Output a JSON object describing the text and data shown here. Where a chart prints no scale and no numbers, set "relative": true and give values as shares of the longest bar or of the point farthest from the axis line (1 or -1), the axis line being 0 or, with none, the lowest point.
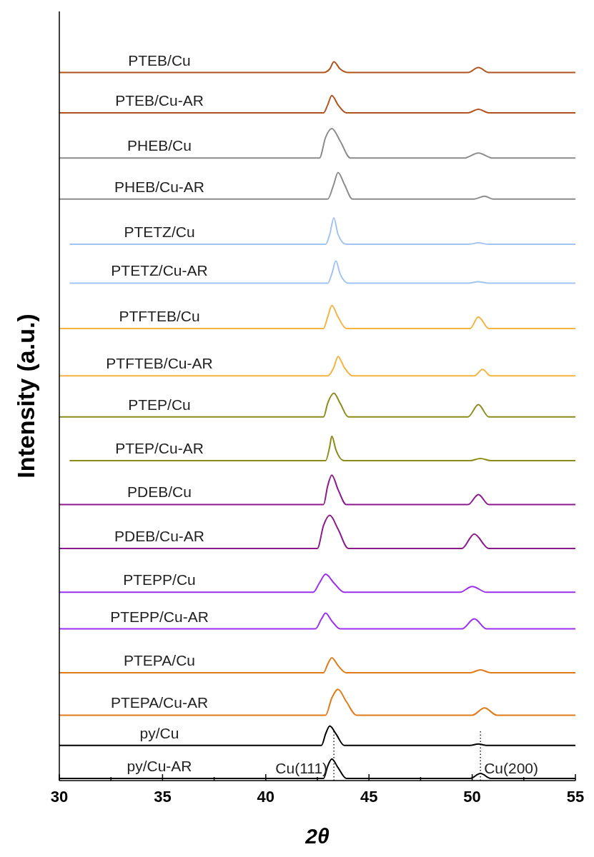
{
  "chart_data": {
    "type": "line",
    "xlabel": "2θ",
    "ylabel": "Intensity (a.u.)",
    "relative": true,
    "xlim": [
      30,
      55
    ],
    "xticks": [
      30,
      {
        "value": 32.5,
        "label": null
      },
      35,
      {
        "value": 37.5,
        "label": null
      },
      40,
      {
        "value": 42.5,
        "label": null
      },
      45,
      {
        "value": 47.5,
        "label": null
      },
      50,
      {
        "value": 52.5,
        "label": null
      },
      55
    ],
    "ref_lines": [
      {
        "axis": "x",
        "value": 43.3,
        "label": "Cu(111)",
        "line_style": "dotted",
        "color": "#000000"
      },
      {
        "axis": "x",
        "value": 50.4,
        "label": "Cu(200)",
        "line_style": "dotted",
        "color": "#000000"
      }
    ],
    "series": [
      {
        "name": "PTEB/Cu",
        "color": "#b0541e",
        "x": [
          30,
          42.8,
          43.1,
          43.3,
          43.6,
          44.0,
          49.8,
          50.3,
          50.8,
          55
        ],
        "values": [
          0.985,
          0.985,
          0.99,
          1.0,
          0.99,
          0.985,
          0.985,
          0.992,
          0.985,
          0.985
        ]
      },
      {
        "name": "PTEB/Cu-AR",
        "color": "#b0541e",
        "x": [
          30,
          42.8,
          43.0,
          43.2,
          43.5,
          43.9,
          49.8,
          50.3,
          50.8,
          55
        ],
        "values": [
          0.929,
          0.929,
          0.94,
          0.953,
          0.94,
          0.929,
          0.929,
          0.934,
          0.929,
          0.929
        ]
      },
      {
        "name": "PHEB/Cu",
        "color": "#8c8c8c",
        "x": [
          30,
          42.6,
          42.9,
          43.2,
          43.6,
          44.1,
          49.6,
          50.3,
          51.0,
          55
        ],
        "values": [
          0.866,
          0.866,
          0.895,
          0.907,
          0.89,
          0.866,
          0.866,
          0.873,
          0.866,
          0.866
        ]
      },
      {
        "name": "PHEB/Cu-AR",
        "color": "#8c8c8c",
        "x": [
          30,
          43.0,
          43.3,
          43.5,
          43.8,
          44.2,
          50.1,
          50.6,
          51.0,
          55
        ],
        "values": [
          0.809,
          0.809,
          0.83,
          0.846,
          0.83,
          0.809,
          0.809,
          0.813,
          0.809,
          0.809
        ]
      },
      {
        "name": "PTETZ/Cu",
        "color": "#a3c4f3",
        "x": [
          30.5,
          42.9,
          43.1,
          43.3,
          43.5,
          43.9,
          49.8,
          50.3,
          50.8,
          55
        ],
        "values": [
          0.746,
          0.746,
          0.76,
          0.783,
          0.76,
          0.746,
          0.746,
          0.748,
          0.746,
          0.746
        ]
      },
      {
        "name": "PTETZ/Cu-AR",
        "color": "#a3c4f3",
        "x": [
          30.5,
          43.0,
          43.2,
          43.4,
          43.6,
          44.0,
          49.8,
          50.3,
          50.8,
          55
        ],
        "values": [
          0.692,
          0.692,
          0.705,
          0.723,
          0.705,
          0.692,
          0.692,
          0.694,
          0.692,
          0.692
        ]
      },
      {
        "name": "PTFTEB/Cu",
        "color": "#f5b342",
        "x": [
          30,
          42.8,
          43.0,
          43.2,
          43.5,
          43.9,
          49.9,
          50.3,
          50.8,
          55
        ],
        "values": [
          0.629,
          0.629,
          0.645,
          0.661,
          0.645,
          0.629,
          0.629,
          0.645,
          0.629,
          0.629
        ]
      },
      {
        "name": "PTFTEB/Cu-AR",
        "color": "#f5b342",
        "x": [
          30,
          43.0,
          43.3,
          43.5,
          43.8,
          44.2,
          50.1,
          50.5,
          50.9,
          55
        ],
        "values": [
          0.563,
          0.563,
          0.575,
          0.59,
          0.575,
          0.563,
          0.563,
          0.572,
          0.563,
          0.563
        ]
      },
      {
        "name": "PTEP/Cu",
        "color": "#8b8b1a",
        "x": [
          30,
          42.8,
          43.0,
          43.3,
          43.6,
          44.0,
          49.8,
          50.3,
          50.8,
          55
        ],
        "values": [
          0.506,
          0.506,
          0.525,
          0.539,
          0.525,
          0.506,
          0.506,
          0.523,
          0.506,
          0.506
        ]
      },
      {
        "name": "PTEP/Cu-AR",
        "color": "#8b8b1a",
        "x": [
          30.5,
          42.9,
          43.1,
          43.2,
          43.4,
          43.8,
          49.9,
          50.4,
          50.9,
          55
        ],
        "values": [
          0.445,
          0.445,
          0.465,
          0.479,
          0.46,
          0.445,
          0.445,
          0.448,
          0.445,
          0.445
        ]
      },
      {
        "name": "PDEB/Cu",
        "color": "#8b1a8b",
        "x": [
          30,
          42.8,
          43.0,
          43.2,
          43.5,
          43.9,
          49.8,
          50.3,
          50.8,
          55
        ],
        "values": [
          0.384,
          0.384,
          0.41,
          0.425,
          0.405,
          0.384,
          0.384,
          0.398,
          0.384,
          0.384
        ]
      },
      {
        "name": "PDEB/Cu-AR",
        "color": "#8b1a8b",
        "x": [
          30,
          42.5,
          42.8,
          43.1,
          43.5,
          44.0,
          49.5,
          50.1,
          50.8,
          55
        ],
        "values": [
          0.323,
          0.323,
          0.355,
          0.369,
          0.35,
          0.323,
          0.323,
          0.343,
          0.323,
          0.323
        ]
      },
      {
        "name": "PTEPP/Cu",
        "color": "#9b30f0",
        "x": [
          30,
          42.3,
          42.6,
          42.9,
          43.3,
          43.8,
          49.4,
          50.0,
          50.7,
          55
        ],
        "values": [
          0.262,
          0.262,
          0.275,
          0.287,
          0.275,
          0.262,
          0.262,
          0.27,
          0.262,
          0.262
        ]
      },
      {
        "name": "PTEPP/Cu-AR",
        "color": "#9b30f0",
        "x": [
          30,
          42.4,
          42.7,
          42.9,
          43.2,
          43.6,
          49.5,
          50.1,
          50.7,
          55
        ],
        "values": [
          0.211,
          0.211,
          0.225,
          0.233,
          0.222,
          0.211,
          0.211,
          0.225,
          0.211,
          0.211
        ]
      },
      {
        "name": "PTEPA/Cu",
        "color": "#e07b1a",
        "x": [
          30,
          42.8,
          43.0,
          43.2,
          43.5,
          43.9,
          49.9,
          50.4,
          50.9,
          55
        ],
        "values": [
          0.15,
          0.15,
          0.162,
          0.171,
          0.16,
          0.15,
          0.15,
          0.154,
          0.15,
          0.15
        ]
      },
      {
        "name": "PTEPA/Cu-AR",
        "color": "#e07b1a",
        "x": [
          30,
          42.9,
          43.2,
          43.5,
          43.9,
          44.4,
          50.0,
          50.6,
          51.2,
          55
        ],
        "values": [
          0.091,
          0.091,
          0.115,
          0.127,
          0.11,
          0.091,
          0.091,
          0.101,
          0.091,
          0.091
        ]
      },
      {
        "name": "py/Cu",
        "color": "#000000",
        "x": [
          30,
          42.7,
          42.9,
          43.1,
          43.4,
          43.8,
          49.9,
          50.3,
          50.7,
          55
        ],
        "values": [
          0.049,
          0.049,
          0.065,
          0.076,
          0.065,
          0.049,
          0.049,
          0.051,
          0.049,
          0.049
        ]
      },
      {
        "name": "py/Cu-AR",
        "color": "#000000",
        "x": [
          30,
          42.8,
          43.0,
          43.2,
          43.5,
          43.9,
          49.9,
          50.4,
          50.9,
          55
        ],
        "values": [
          0.003,
          0.003,
          0.02,
          0.03,
          0.018,
          0.003,
          0.003,
          0.01,
          0.003,
          0.003
        ]
      }
    ]
  }
}
